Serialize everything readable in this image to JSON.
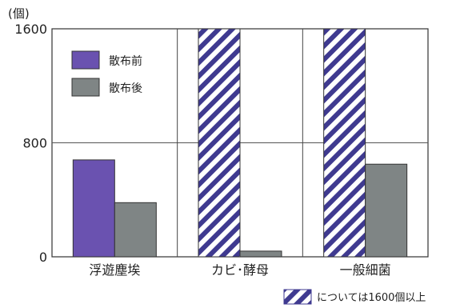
{
  "chart_data": {
    "type": "bar",
    "unit_label": "(個)",
    "categories": [
      "浮遊塵埃",
      "カビ･酵母",
      "一般細菌"
    ],
    "series": [
      {
        "name": "散布前",
        "values": [
          680,
          null,
          null
        ],
        "color": "#6a52b0"
      },
      {
        "name": "散布後",
        "values": [
          380,
          40,
          650
        ],
        "color": "#7f8585"
      }
    ],
    "overflow_bars": [
      {
        "category": "カビ･酵母",
        "series": "散布前"
      },
      {
        "category": "一般細菌",
        "series": "散布前"
      }
    ],
    "overflow_note": "については1600個以上",
    "hatch_color": "#3f3a90",
    "ylim": [
      0,
      1600
    ],
    "yticks": [
      0,
      800,
      1600
    ],
    "grid": true,
    "legend": "top-left"
  }
}
